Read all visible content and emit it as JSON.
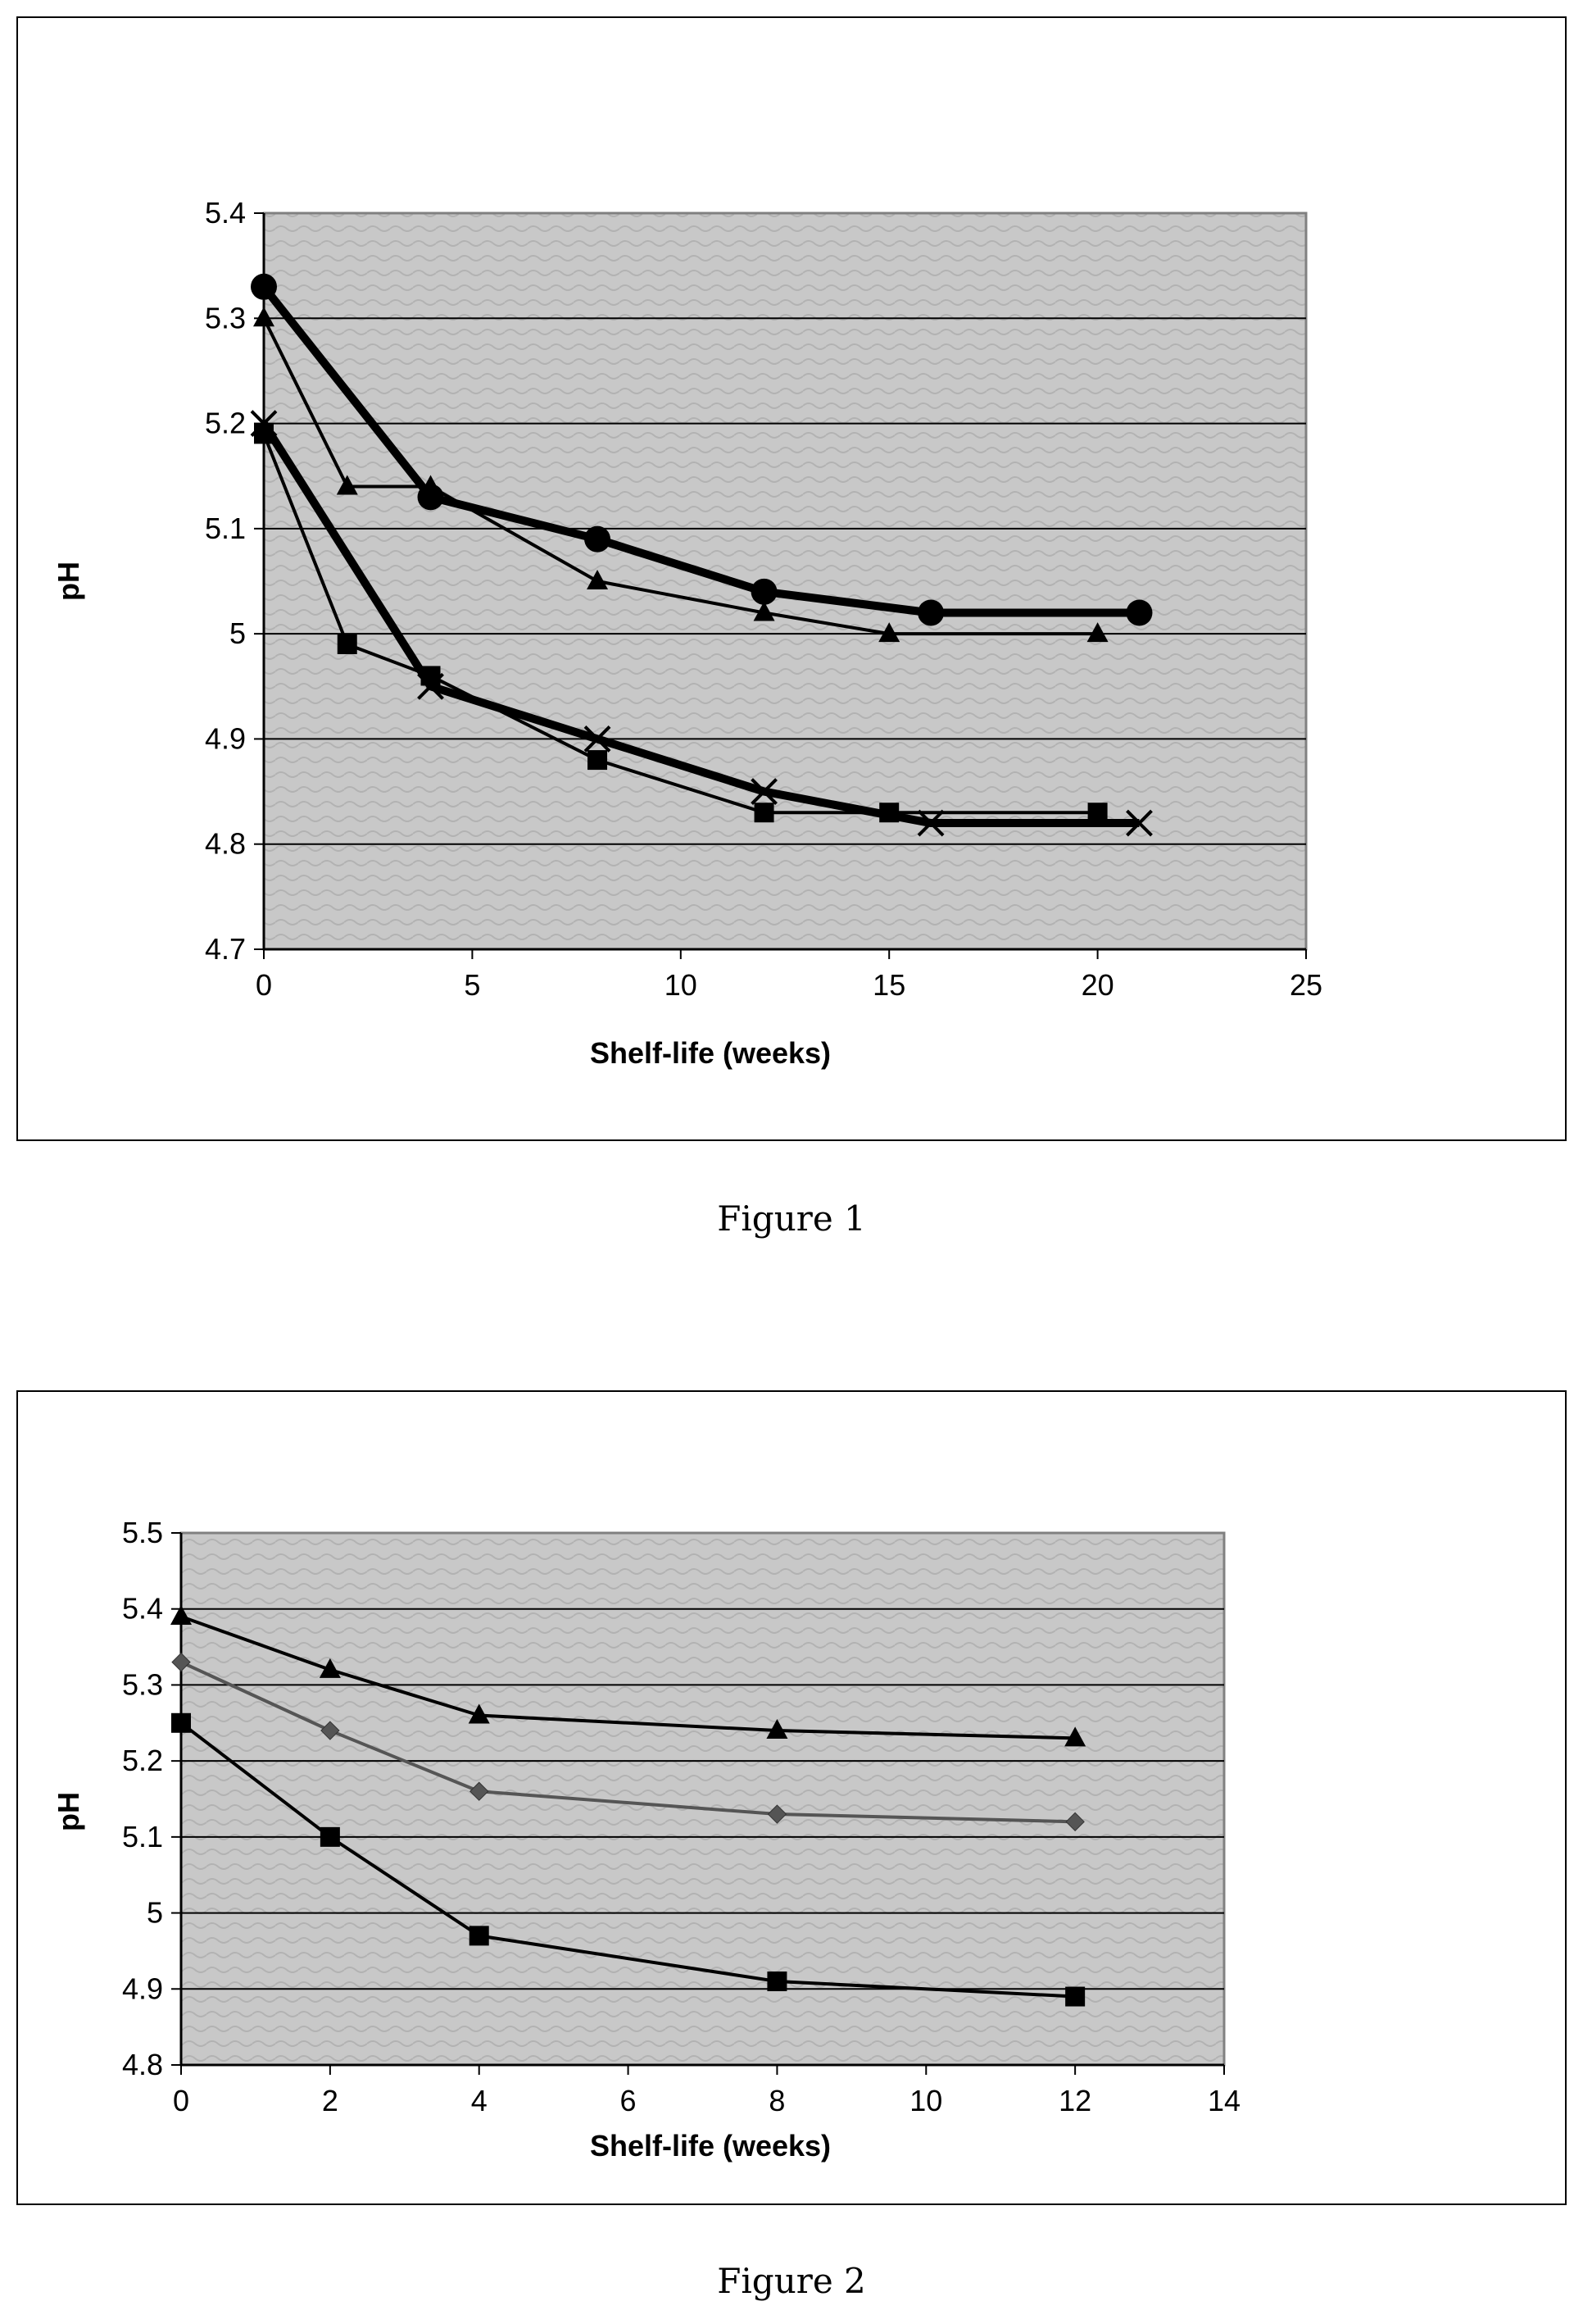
{
  "captions": {
    "figure1": "Figure 1",
    "figure2": "Figure 2"
  },
  "colors": {
    "plot_background": "#c8c8c8",
    "gridline": "#000000",
    "series_dark": "#000000",
    "series_gray": "#555555"
  },
  "chart_data": [
    {
      "type": "line",
      "title": "",
      "xlabel": "Shelf-life (weeks)",
      "ylabel": "pH",
      "xlim": [
        0,
        25
      ],
      "ylim": [
        4.7,
        5.4
      ],
      "xticks": [
        "0",
        "5",
        "10",
        "15",
        "20",
        "25"
      ],
      "yticks": [
        "4.7",
        "4.8",
        "4.9",
        "5",
        "5.1",
        "5.2",
        "5.3",
        "5.4"
      ],
      "grid": "horizontal",
      "series": [
        {
          "marker": "circle",
          "line": "thick",
          "x": [
            0,
            4,
            8,
            12,
            16,
            21
          ],
          "y": [
            5.33,
            5.13,
            5.09,
            5.04,
            5.02,
            5.02
          ]
        },
        {
          "marker": "triangle",
          "line": "thin",
          "x": [
            0,
            2,
            4,
            8,
            12,
            15,
            20
          ],
          "y": [
            5.3,
            5.14,
            5.14,
            5.05,
            5.02,
            5.0,
            5.0
          ]
        },
        {
          "marker": "cross",
          "line": "thick",
          "x": [
            0,
            4,
            8,
            12,
            16,
            21
          ],
          "y": [
            5.2,
            4.95,
            4.9,
            4.85,
            4.82,
            4.82
          ]
        },
        {
          "marker": "square",
          "line": "thin",
          "x": [
            0,
            2,
            4,
            8,
            12,
            15,
            20
          ],
          "y": [
            5.19,
            4.99,
            4.96,
            4.88,
            4.83,
            4.83,
            4.83
          ]
        }
      ]
    },
    {
      "type": "line",
      "title": "",
      "xlabel": "Shelf-life (weeks)",
      "ylabel": "pH",
      "xlim": [
        0,
        14
      ],
      "ylim": [
        4.8,
        5.5
      ],
      "xticks": [
        "0",
        "2",
        "4",
        "6",
        "8",
        "10",
        "12",
        "14"
      ],
      "yticks": [
        "4.8",
        "4.9",
        "5",
        "5.1",
        "5.2",
        "5.3",
        "5.4",
        "5.5"
      ],
      "grid": "horizontal",
      "series": [
        {
          "marker": "triangle",
          "line": "thin",
          "x": [
            0,
            2,
            4,
            8,
            12
          ],
          "y": [
            5.39,
            5.32,
            5.26,
            5.24,
            5.23
          ]
        },
        {
          "marker": "diamond",
          "line": "thin-gray",
          "x": [
            0,
            2,
            4,
            8,
            12
          ],
          "y": [
            5.33,
            5.24,
            5.16,
            5.13,
            5.12
          ]
        },
        {
          "marker": "square",
          "line": "thin",
          "x": [
            0,
            2,
            4,
            8,
            12
          ],
          "y": [
            5.25,
            5.1,
            4.97,
            4.91,
            4.89
          ]
        }
      ]
    }
  ]
}
